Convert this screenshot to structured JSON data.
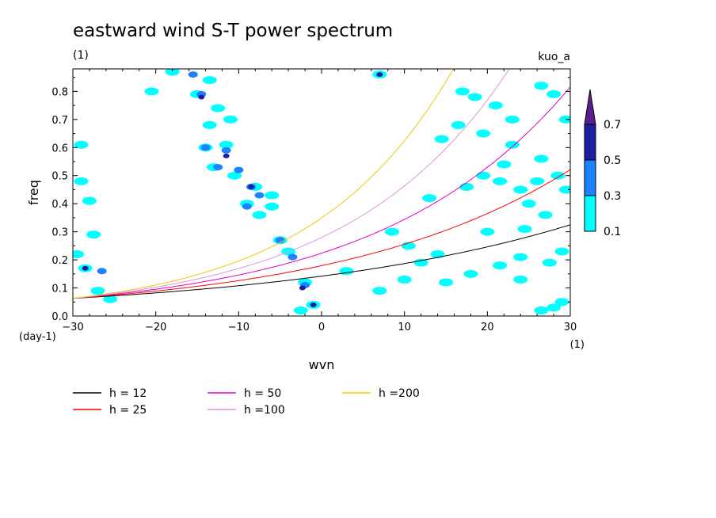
{
  "chart_data": {
    "type": "heatmap",
    "title": "eastward wind S-T power spectrum",
    "subtitle_left": "(1)",
    "subtitle_right": "kuo_a",
    "xlabel": "wvn",
    "ylabel": "freq",
    "x_unit": "(1)",
    "y_unit": "(day-1)",
    "xlim": [
      -30,
      30
    ],
    "ylim": [
      0,
      0.88
    ],
    "xticks": [
      -30,
      -20,
      -10,
      0,
      10,
      20,
      30
    ],
    "yticks": [
      0.0,
      0.1,
      0.2,
      0.3,
      0.4,
      0.5,
      0.6,
      0.7,
      0.8
    ],
    "colorbar": {
      "levels": [
        "0.1",
        "0.3",
        "0.5",
        "0.7"
      ],
      "colors": [
        "#00ffff",
        "#1e82ff",
        "#1e1ea0",
        "#5a1e8c"
      ]
    },
    "series": [
      {
        "name": "h = 12",
        "color": "#000000",
        "h": 12
      },
      {
        "name": "h = 25",
        "color": "#ff0000",
        "h": 25
      },
      {
        "name": "h = 50",
        "color": "#e000c8",
        "h": 50
      },
      {
        "name": "h =100",
        "color": "#dc96dc",
        "h": 100
      },
      {
        "name": "h =200",
        "color": "#f0c800",
        "h": 200
      }
    ],
    "blobs": [
      {
        "x": -28.5,
        "y": 0.17,
        "lv": 0
      },
      {
        "x": -26.5,
        "y": 0.16,
        "lv": 1
      },
      {
        "x": -28,
        "y": 0.41,
        "lv": 0
      },
      {
        "x": -29,
        "y": 0.61,
        "lv": 0
      },
      {
        "x": -29,
        "y": 0.48,
        "lv": 0
      },
      {
        "x": -27.5,
        "y": 0.29,
        "lv": 0
      },
      {
        "x": -27,
        "y": 0.09,
        "lv": 0
      },
      {
        "x": -25.5,
        "y": 0.06,
        "lv": 0
      },
      {
        "x": -29.5,
        "y": 0.22,
        "lv": 0
      },
      {
        "x": -28.5,
        "y": 0.17,
        "lv": 2
      },
      {
        "x": -20.5,
        "y": 0.8,
        "lv": 0
      },
      {
        "x": -18,
        "y": 0.87,
        "lv": 0
      },
      {
        "x": -15,
        "y": 0.79,
        "lv": 0
      },
      {
        "x": -14.5,
        "y": 0.79,
        "lv": 1
      },
      {
        "x": -14.5,
        "y": 0.78,
        "lv": 2
      },
      {
        "x": -13.5,
        "y": 0.84,
        "lv": 0
      },
      {
        "x": -15.5,
        "y": 0.86,
        "lv": 1
      },
      {
        "x": -12.5,
        "y": 0.74,
        "lv": 0
      },
      {
        "x": -11,
        "y": 0.7,
        "lv": 0
      },
      {
        "x": -13.5,
        "y": 0.68,
        "lv": 0
      },
      {
        "x": -14,
        "y": 0.6,
        "lv": 0
      },
      {
        "x": -14,
        "y": 0.6,
        "lv": 1
      },
      {
        "x": -11.5,
        "y": 0.61,
        "lv": 0
      },
      {
        "x": -11.5,
        "y": 0.59,
        "lv": 1
      },
      {
        "x": -11.5,
        "y": 0.57,
        "lv": 2
      },
      {
        "x": -13,
        "y": 0.53,
        "lv": 0
      },
      {
        "x": -12.5,
        "y": 0.53,
        "lv": 1
      },
      {
        "x": -10.5,
        "y": 0.5,
        "lv": 0
      },
      {
        "x": -10,
        "y": 0.52,
        "lv": 1
      },
      {
        "x": -8,
        "y": 0.46,
        "lv": 0
      },
      {
        "x": -8.5,
        "y": 0.46,
        "lv": 1
      },
      {
        "x": -8.5,
        "y": 0.46,
        "lv": 2
      },
      {
        "x": -6,
        "y": 0.43,
        "lv": 0
      },
      {
        "x": -7.5,
        "y": 0.43,
        "lv": 1
      },
      {
        "x": -9,
        "y": 0.4,
        "lv": 0
      },
      {
        "x": -9,
        "y": 0.39,
        "lv": 1
      },
      {
        "x": -6,
        "y": 0.39,
        "lv": 0
      },
      {
        "x": -7.5,
        "y": 0.36,
        "lv": 0
      },
      {
        "x": -5,
        "y": 0.27,
        "lv": 0
      },
      {
        "x": -5,
        "y": 0.27,
        "lv": 1
      },
      {
        "x": -4,
        "y": 0.23,
        "lv": 0
      },
      {
        "x": -3.5,
        "y": 0.21,
        "lv": 1
      },
      {
        "x": -2,
        "y": 0.12,
        "lv": 0
      },
      {
        "x": -2,
        "y": 0.11,
        "lv": 1
      },
      {
        "x": -2.3,
        "y": 0.1,
        "lv": 2
      },
      {
        "x": -1,
        "y": 0.04,
        "lv": 0
      },
      {
        "x": -1,
        "y": 0.04,
        "lv": 2
      },
      {
        "x": -2.5,
        "y": 0.02,
        "lv": 0
      },
      {
        "x": 7,
        "y": 0.86,
        "lv": 0
      },
      {
        "x": 7,
        "y": 0.86,
        "lv": 2
      },
      {
        "x": 17,
        "y": 0.8,
        "lv": 0
      },
      {
        "x": 18.5,
        "y": 0.78,
        "lv": 0
      },
      {
        "x": 21,
        "y": 0.75,
        "lv": 0
      },
      {
        "x": 23,
        "y": 0.7,
        "lv": 0
      },
      {
        "x": 19.5,
        "y": 0.65,
        "lv": 0
      },
      {
        "x": 16.5,
        "y": 0.68,
        "lv": 0
      },
      {
        "x": 14.5,
        "y": 0.63,
        "lv": 0
      },
      {
        "x": 26.5,
        "y": 0.82,
        "lv": 0
      },
      {
        "x": 28,
        "y": 0.79,
        "lv": 0
      },
      {
        "x": 29.5,
        "y": 0.7,
        "lv": 0
      },
      {
        "x": 26.5,
        "y": 0.56,
        "lv": 0
      },
      {
        "x": 23,
        "y": 0.61,
        "lv": 0
      },
      {
        "x": 21.5,
        "y": 0.48,
        "lv": 0
      },
      {
        "x": 19.5,
        "y": 0.5,
        "lv": 0
      },
      {
        "x": 24,
        "y": 0.45,
        "lv": 0
      },
      {
        "x": 26,
        "y": 0.48,
        "lv": 0
      },
      {
        "x": 29.5,
        "y": 0.45,
        "lv": 0
      },
      {
        "x": 27,
        "y": 0.36,
        "lv": 0
      },
      {
        "x": 24.5,
        "y": 0.31,
        "lv": 0
      },
      {
        "x": 20,
        "y": 0.3,
        "lv": 0
      },
      {
        "x": 13,
        "y": 0.42,
        "lv": 0
      },
      {
        "x": 17.5,
        "y": 0.46,
        "lv": 0
      },
      {
        "x": 8.5,
        "y": 0.3,
        "lv": 0
      },
      {
        "x": 10.5,
        "y": 0.25,
        "lv": 0
      },
      {
        "x": 12,
        "y": 0.19,
        "lv": 0
      },
      {
        "x": 14,
        "y": 0.22,
        "lv": 0
      },
      {
        "x": 24,
        "y": 0.21,
        "lv": 0
      },
      {
        "x": 27.5,
        "y": 0.19,
        "lv": 0
      },
      {
        "x": 29,
        "y": 0.23,
        "lv": 0
      },
      {
        "x": 21.5,
        "y": 0.18,
        "lv": 0
      },
      {
        "x": 18,
        "y": 0.15,
        "lv": 0
      },
      {
        "x": 24,
        "y": 0.13,
        "lv": 0
      },
      {
        "x": 15,
        "y": 0.12,
        "lv": 0
      },
      {
        "x": 10,
        "y": 0.13,
        "lv": 0
      },
      {
        "x": 3,
        "y": 0.16,
        "lv": 0
      },
      {
        "x": 7,
        "y": 0.09,
        "lv": 0
      },
      {
        "x": 28,
        "y": 0.03,
        "lv": 0
      },
      {
        "x": 26.5,
        "y": 0.02,
        "lv": 0
      },
      {
        "x": 29,
        "y": 0.05,
        "lv": 0
      },
      {
        "x": 28.5,
        "y": 0.5,
        "lv": 0
      },
      {
        "x": 22,
        "y": 0.54,
        "lv": 0
      },
      {
        "x": 25,
        "y": 0.4,
        "lv": 0
      }
    ]
  }
}
